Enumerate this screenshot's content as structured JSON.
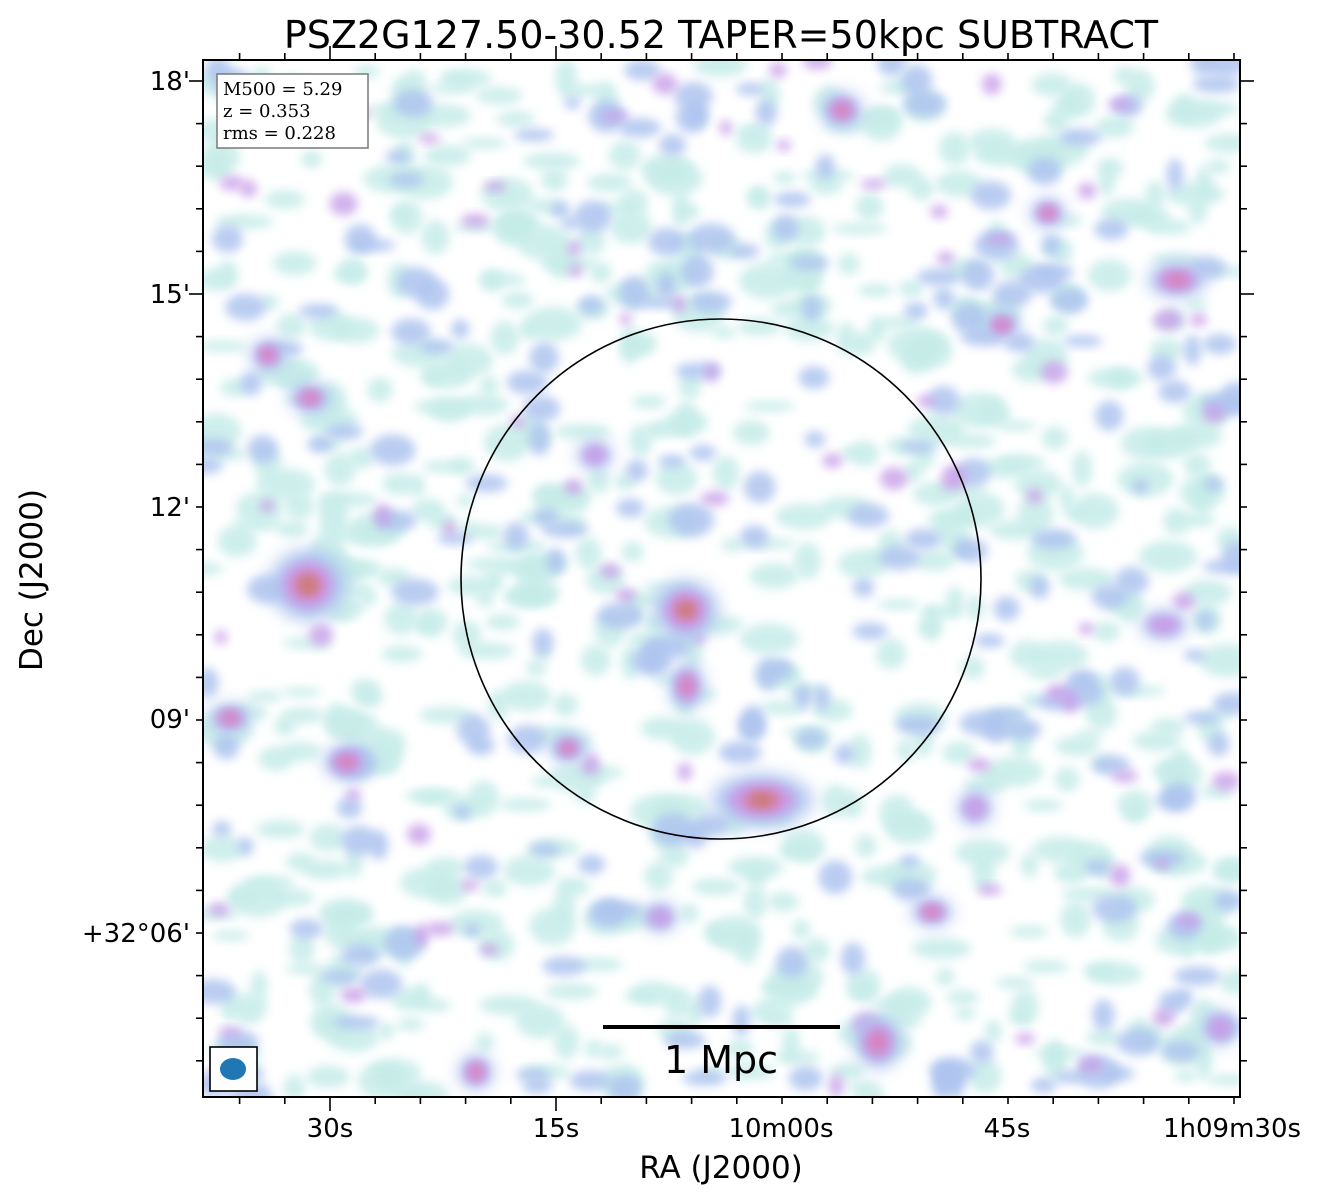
{
  "chart_data": {
    "type": "heatmap",
    "title": "PSZ2G127.50-30.52 TAPER=50kpc SUBTRACT",
    "xlabel": "RA (J2000)",
    "ylabel": "Dec (J2000)",
    "x_tick_labels": [
      "30s",
      "15s",
      "10m00s",
      "45s",
      "1h09m30s"
    ],
    "y_tick_labels": [
      "18'",
      "15'",
      "12'",
      "09'",
      "+32°06'"
    ],
    "info": {
      "mass_line": "M500 = 5.29",
      "redshift_line": "z = 0.353",
      "rms_line": "rms = 0.228"
    },
    "scale_bar_label": "1 Mpc",
    "colormap": [
      "#ffffff",
      "#c6ece8",
      "#aec4ef",
      "#c79ee8",
      "#d97fb7",
      "#c97d6a"
    ],
    "circle_color": "#000000",
    "beam_color": "#1f77b4"
  }
}
